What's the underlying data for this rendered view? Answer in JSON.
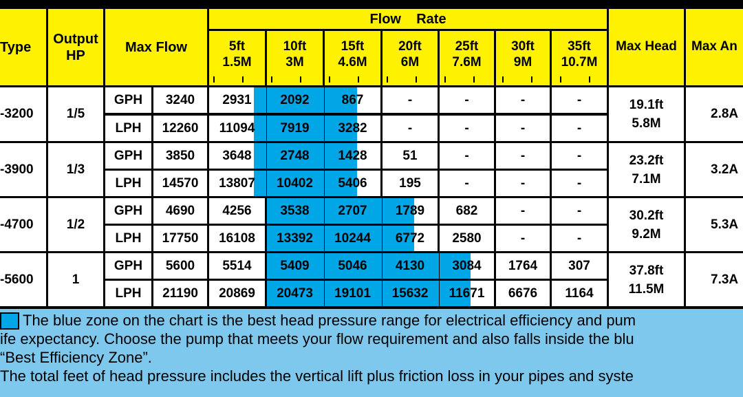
{
  "header": {
    "type": "Type",
    "output_hp": [
      "Output",
      "HP"
    ],
    "max_flow": "Max Flow",
    "flow_rate": "Flow    Rate",
    "heads": [
      {
        "ft": "5ft",
        "m": "1.5M"
      },
      {
        "ft": "10ft",
        "m": "3M"
      },
      {
        "ft": "15ft",
        "m": "4.6M"
      },
      {
        "ft": "20ft",
        "m": "6M"
      },
      {
        "ft": "25ft",
        "m": "7.6M"
      },
      {
        "ft": "30ft",
        "m": "9M"
      },
      {
        "ft": "35ft",
        "m": "10.7M"
      }
    ],
    "max_head": "Max Head",
    "max_amp": "Max An"
  },
  "models": [
    {
      "type": "-3200",
      "hp": "1/5",
      "max_head_ft": "19.1ft",
      "max_head_m": "5.8M",
      "amp": "2.8A",
      "rows": [
        {
          "unit": "GPH",
          "max": "3240",
          "vals": [
            "2931",
            "2092",
            "867",
            "-",
            "-",
            "-",
            "-"
          ]
        },
        {
          "unit": "LPH",
          "max": "12260",
          "vals": [
            "11094",
            "7919",
            "3282",
            "-",
            "-",
            "-",
            "-"
          ]
        }
      ]
    },
    {
      "type": "-3900",
      "hp": "1/3",
      "max_head_ft": "23.2ft",
      "max_head_m": "7.1M",
      "amp": "3.2A",
      "rows": [
        {
          "unit": "GPH",
          "max": "3850",
          "vals": [
            "3648",
            "2748",
            "1428",
            "51",
            "-",
            "-",
            "-"
          ]
        },
        {
          "unit": "LPH",
          "max": "14570",
          "vals": [
            "13807",
            "10402",
            "5406",
            "195",
            "-",
            "-",
            "-"
          ]
        }
      ]
    },
    {
      "type": "-4700",
      "hp": "1/2",
      "max_head_ft": "30.2ft",
      "max_head_m": "9.2M",
      "amp": "5.3A",
      "rows": [
        {
          "unit": "GPH",
          "max": "4690",
          "vals": [
            "4256",
            "3538",
            "2707",
            "1789",
            "682",
            "-",
            "-"
          ]
        },
        {
          "unit": "LPH",
          "max": "17750",
          "vals": [
            "16108",
            "13392",
            "10244",
            "6772",
            "2580",
            "-",
            "-"
          ]
        }
      ]
    },
    {
      "type": "-5600",
      "hp": "1",
      "max_head_ft": "37.8ft",
      "max_head_m": "11.5M",
      "amp": "7.3A",
      "rows": [
        {
          "unit": "GPH",
          "max": "5600",
          "vals": [
            "5514",
            "5409",
            "5046",
            "4130",
            "3084",
            "1764",
            "307"
          ]
        },
        {
          "unit": "LPH",
          "max": "21190",
          "vals": [
            "20869",
            "20473",
            "19101",
            "15632",
            "11671",
            "6676",
            "1164"
          ]
        }
      ]
    }
  ],
  "blue_zone": [
    [
      [
        0.8,
        1
      ],
      [
        0,
        1
      ],
      [
        0,
        0.55
      ],
      [
        0,
        0
      ],
      [
        0,
        0
      ],
      [
        0,
        0
      ],
      [
        0,
        0
      ]
    ],
    [
      [
        0.8,
        1
      ],
      [
        0,
        1
      ],
      [
        0,
        0.55
      ],
      [
        0,
        0
      ],
      [
        0,
        0
      ],
      [
        0,
        0
      ],
      [
        0,
        0
      ]
    ],
    [
      [
        0,
        0
      ],
      [
        0,
        1
      ],
      [
        0,
        1
      ],
      [
        0,
        0.55
      ],
      [
        0,
        0
      ],
      [
        0,
        0
      ],
      [
        0,
        0
      ]
    ],
    [
      [
        0,
        0
      ],
      [
        0,
        1
      ],
      [
        0,
        1
      ],
      [
        0,
        1
      ],
      [
        0,
        0.55
      ],
      [
        0,
        0
      ],
      [
        0,
        0
      ]
    ]
  ],
  "legend": {
    "line1": "The blue zone on the chart is the best head pressure range for electrical efficiency and pum",
    "line2": "ife expectancy. Choose the pump that meets your flow requirement and also falls inside the blu",
    "line3": "“Best Efficiency Zone”.",
    "line4": "The total feet of head pressure includes the vertical lift plus friction loss in your pipes and syste"
  },
  "colors": {
    "header_yellow": "#fff200",
    "blue_zone": "#00a6e6",
    "background": "#7ec8ee",
    "grid": "#000000"
  }
}
